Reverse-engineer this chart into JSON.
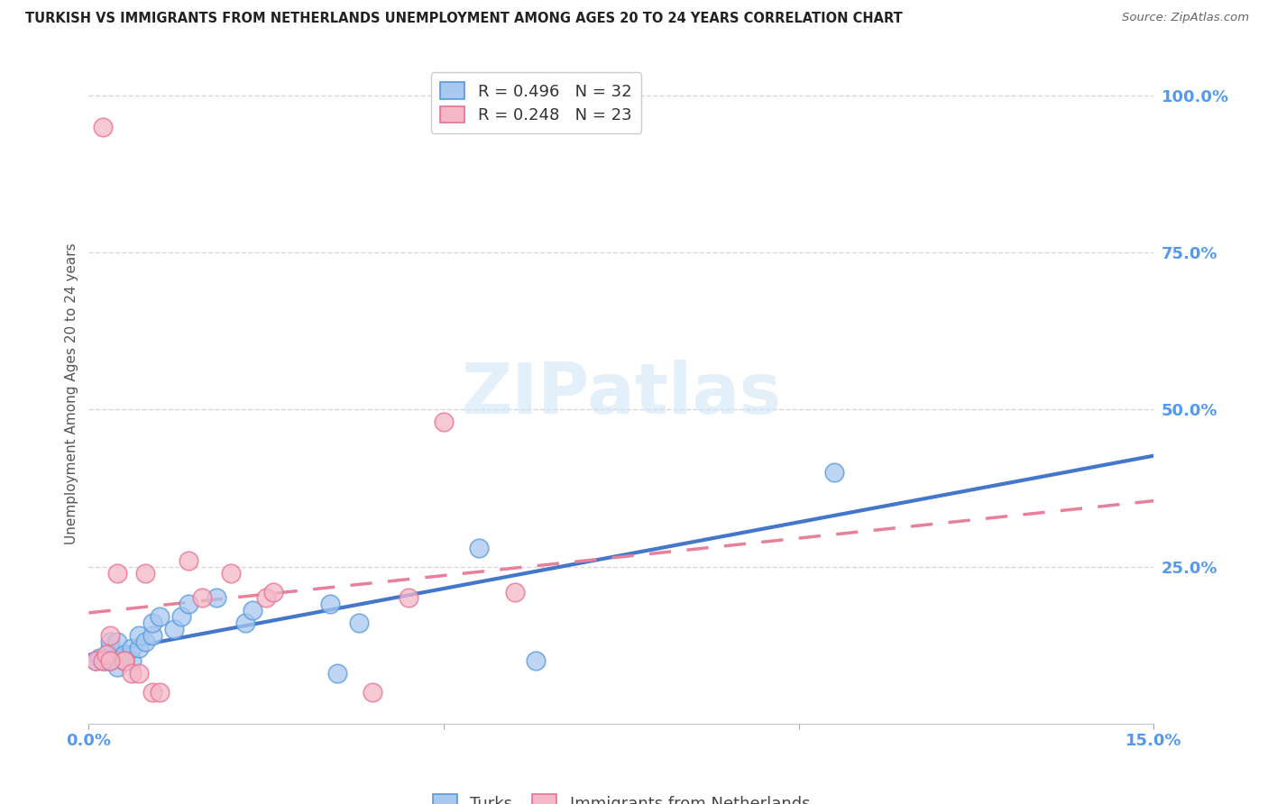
{
  "title": "TURKISH VS IMMIGRANTS FROM NETHERLANDS UNEMPLOYMENT AMONG AGES 20 TO 24 YEARS CORRELATION CHART",
  "source": "Source: ZipAtlas.com",
  "ylabel": "Unemployment Among Ages 20 to 24 years",
  "xlim": [
    0.0,
    0.15
  ],
  "ylim": [
    0.0,
    1.05
  ],
  "ytick_positions": [
    0.0,
    0.25,
    0.5,
    0.75,
    1.0
  ],
  "ytick_labels": [
    "",
    "25.0%",
    "50.0%",
    "75.0%",
    "100.0%"
  ],
  "background_color": "#ffffff",
  "grid_color": "#d8d8d8",
  "turks_fill_color": "#a8c8f0",
  "turks_edge_color": "#5599dd",
  "netherlands_fill_color": "#f5b8c8",
  "netherlands_edge_color": "#e87090",
  "turks_line_color": "#4477cc",
  "netherlands_line_color": "#e88099",
  "turks_R": 0.496,
  "turks_N": 32,
  "netherlands_R": 0.248,
  "netherlands_N": 23,
  "label_turks": "Turks",
  "label_netherlands": "Immigrants from Netherlands",
  "tick_color": "#5599ee",
  "watermark_text": "ZIPatlas",
  "turks_x": [
    0.001,
    0.0015,
    0.002,
    0.0025,
    0.003,
    0.003,
    0.003,
    0.004,
    0.004,
    0.005,
    0.005,
    0.005,
    0.006,
    0.006,
    0.007,
    0.007,
    0.008,
    0.009,
    0.009,
    0.01,
    0.012,
    0.013,
    0.014,
    0.018,
    0.022,
    0.023,
    0.034,
    0.035,
    0.038,
    0.055,
    0.063,
    0.105
  ],
  "turks_y": [
    0.1,
    0.105,
    0.1,
    0.1,
    0.1,
    0.12,
    0.13,
    0.09,
    0.13,
    0.1,
    0.1,
    0.11,
    0.1,
    0.12,
    0.12,
    0.14,
    0.13,
    0.14,
    0.16,
    0.17,
    0.15,
    0.17,
    0.19,
    0.2,
    0.16,
    0.18,
    0.19,
    0.08,
    0.16,
    0.28,
    0.1,
    0.4
  ],
  "netherlands_x": [
    0.001,
    0.002,
    0.0025,
    0.003,
    0.004,
    0.005,
    0.005,
    0.006,
    0.007,
    0.008,
    0.009,
    0.01,
    0.014,
    0.016,
    0.02,
    0.025,
    0.026,
    0.04,
    0.045,
    0.05,
    0.06,
    0.002,
    0.003
  ],
  "netherlands_y": [
    0.1,
    0.1,
    0.11,
    0.14,
    0.24,
    0.1,
    0.1,
    0.08,
    0.08,
    0.24,
    0.05,
    0.05,
    0.26,
    0.2,
    0.24,
    0.2,
    0.21,
    0.05,
    0.2,
    0.48,
    0.21,
    0.95,
    0.1
  ]
}
